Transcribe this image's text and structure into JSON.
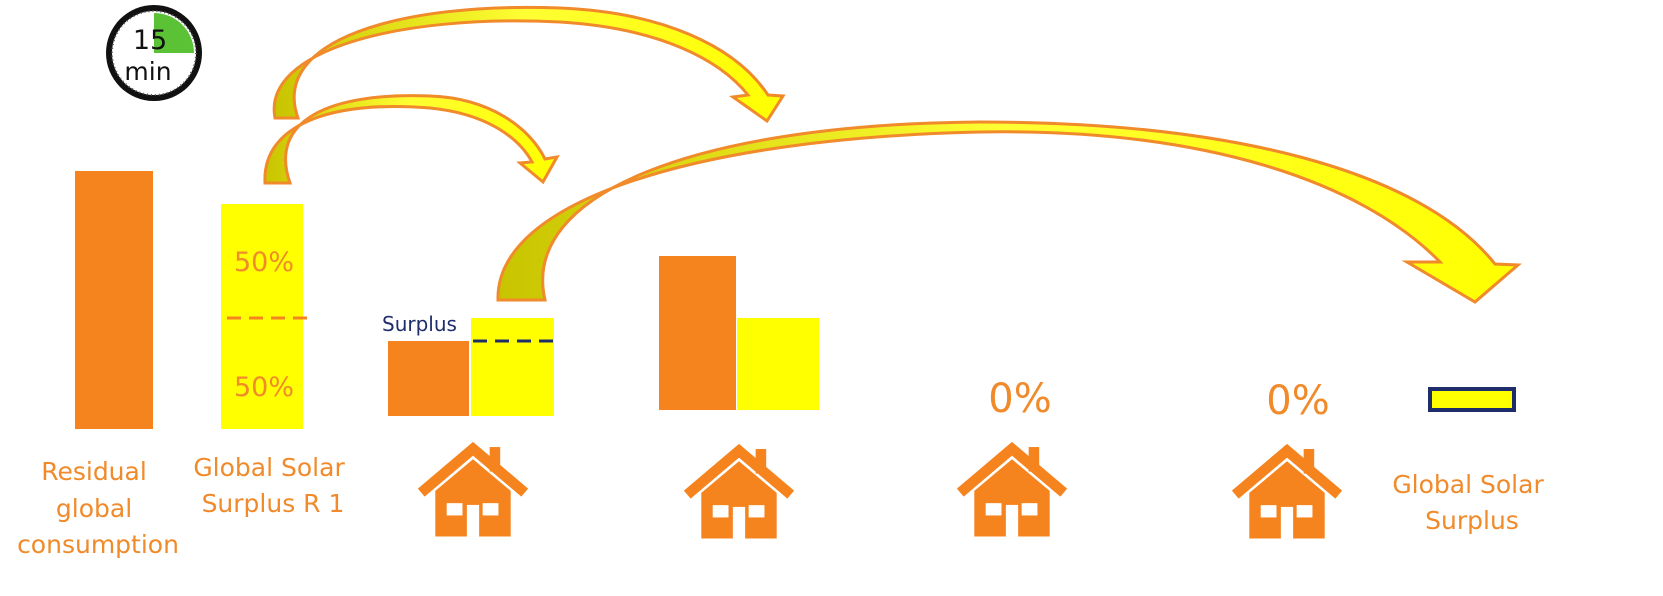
{
  "colors": {
    "orange": "#f5841f",
    "yellow": "#ffff00",
    "arrow_fill_dark": "#c8c400",
    "arrow_fill_light": "#ffff33",
    "arrow_stroke": "#f08a2a",
    "navy": "#1f2d6b",
    "green": "#5bc236",
    "text_orange": "#f08a2a"
  },
  "timer": {
    "value": "15",
    "unit": "min",
    "icon": "stopwatch-icon",
    "filled_fraction": 0.25
  },
  "bars": {
    "residual_consumption": {
      "label_lines": [
        "Residual",
        "global",
        "consumption"
      ]
    },
    "global_solar_surplus_r1": {
      "label_lines": [
        "Global Solar",
        "Surplus R 1"
      ],
      "top_share": "50%",
      "bottom_share": "50%"
    },
    "house_1": {
      "surplus_label": "Surplus"
    },
    "house_3": {
      "share": "0%"
    },
    "house_4": {
      "share": "0%"
    },
    "global_solar_surplus": {
      "label_lines": [
        "Global Solar",
        "Surplus"
      ]
    }
  },
  "icons": [
    "house-icon",
    "house-icon",
    "house-icon",
    "house-icon"
  ]
}
